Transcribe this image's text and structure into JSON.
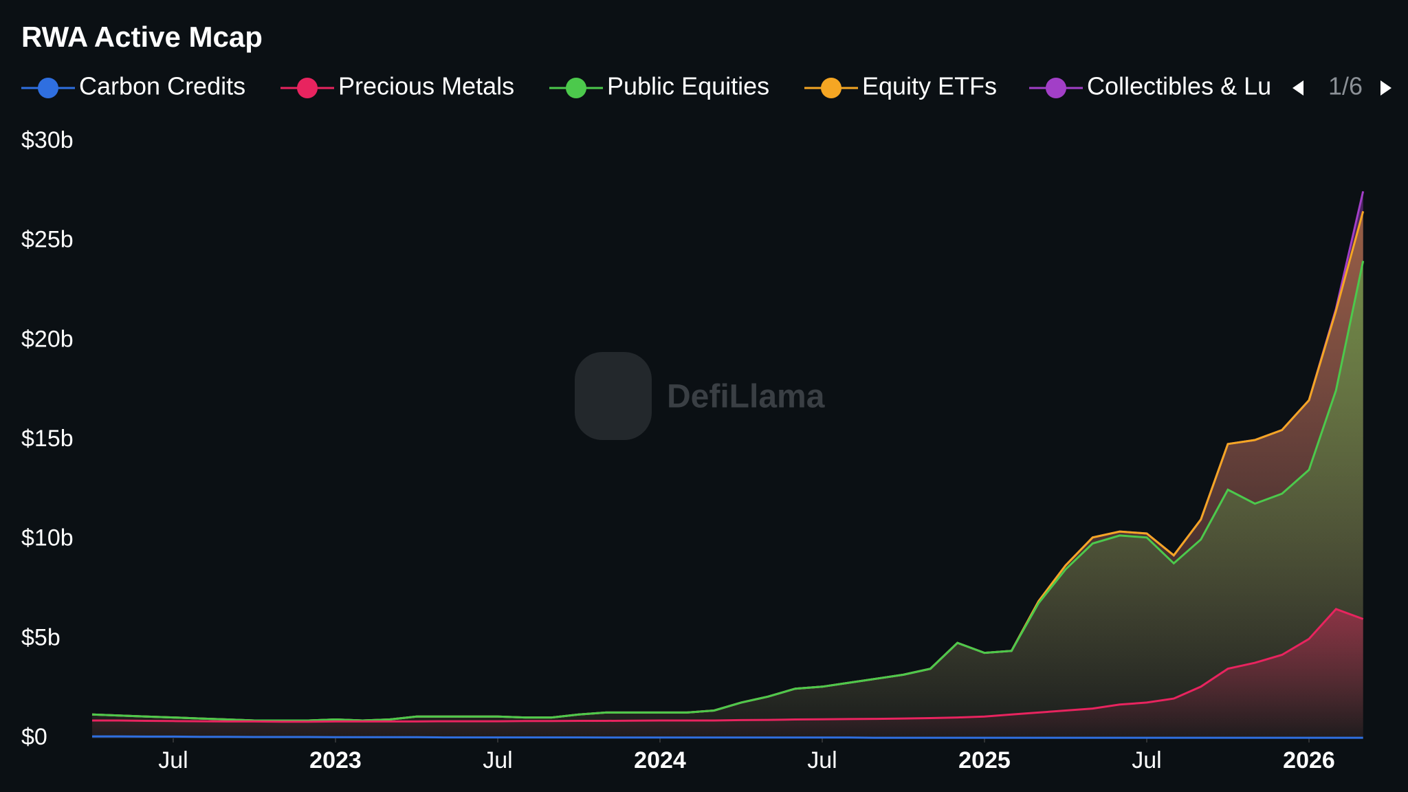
{
  "chart_data": {
    "type": "area",
    "title": "RWA Active Mcap",
    "watermark": "DefiLlama",
    "legend_page": "1/6",
    "x": [
      "2022-04",
      "2022-05",
      "2022-06",
      "2022-07",
      "2022-08",
      "2022-09",
      "2022-10",
      "2022-11",
      "2022-12",
      "2023-01",
      "2023-02",
      "2023-03",
      "2023-04",
      "2023-05",
      "2023-06",
      "2023-07",
      "2023-08",
      "2023-09",
      "2023-10",
      "2023-11",
      "2023-12",
      "2024-01",
      "2024-02",
      "2024-03",
      "2024-04",
      "2024-05",
      "2024-06",
      "2024-07",
      "2024-08",
      "2024-09",
      "2024-10",
      "2024-11",
      "2024-12",
      "2025-01",
      "2025-02",
      "2025-03",
      "2025-04",
      "2025-05",
      "2025-06",
      "2025-07",
      "2025-08",
      "2025-09",
      "2025-10",
      "2025-11",
      "2025-12",
      "2026-01",
      "2026-02",
      "2026-03"
    ],
    "xlim": [
      "2022-04",
      "2026-04"
    ],
    "xticks": [
      {
        "value": "2022-07",
        "label": "Jul"
      },
      {
        "value": "2023-01",
        "label": "2023"
      },
      {
        "value": "2023-07",
        "label": "Jul"
      },
      {
        "value": "2024-01",
        "label": "2024"
      },
      {
        "value": "2024-07",
        "label": "Jul"
      },
      {
        "value": "2025-01",
        "label": "2025"
      },
      {
        "value": "2025-07",
        "label": "Jul"
      },
      {
        "value": "2026-01",
        "label": "2026"
      }
    ],
    "ylim": [
      0,
      30
    ],
    "yticks": [
      {
        "value": 0,
        "label": "$0"
      },
      {
        "value": 5,
        "label": "$5b"
      },
      {
        "value": 10,
        "label": "$10b"
      },
      {
        "value": 15,
        "label": "$15b"
      },
      {
        "value": 20,
        "label": "$20b"
      },
      {
        "value": 25,
        "label": "$25b"
      },
      {
        "value": 30,
        "label": "$30b"
      }
    ],
    "series": [
      {
        "name": "Carbon Credits",
        "color": "#2f6fe0",
        "values": [
          0.1,
          0.1,
          0.09,
          0.09,
          0.08,
          0.08,
          0.07,
          0.07,
          0.07,
          0.06,
          0.06,
          0.06,
          0.06,
          0.05,
          0.05,
          0.05,
          0.05,
          0.05,
          0.05,
          0.04,
          0.04,
          0.04,
          0.04,
          0.04,
          0.04,
          0.04,
          0.04,
          0.04,
          0.04,
          0.03,
          0.03,
          0.03,
          0.03,
          0.03,
          0.03,
          0.03,
          0.03,
          0.03,
          0.03,
          0.03,
          0.03,
          0.03,
          0.03,
          0.03,
          0.03,
          0.03,
          0.03,
          0.03
        ]
      },
      {
        "name": "Precious Metals",
        "color": "#e8245f",
        "values": [
          0.9,
          0.9,
          0.88,
          0.87,
          0.86,
          0.85,
          0.85,
          0.84,
          0.84,
          0.85,
          0.85,
          0.85,
          0.85,
          0.86,
          0.86,
          0.86,
          0.87,
          0.87,
          0.88,
          0.88,
          0.89,
          0.9,
          0.9,
          0.9,
          0.92,
          0.93,
          0.95,
          0.96,
          0.97,
          0.98,
          1.0,
          1.02,
          1.05,
          1.1,
          1.2,
          1.3,
          1.4,
          1.5,
          1.7,
          1.8,
          2.0,
          2.6,
          3.5,
          3.8,
          4.2,
          5.0,
          6.5,
          6.0
        ]
      },
      {
        "name": "Public Equities",
        "color": "#4cc94c",
        "values": [
          1.2,
          1.15,
          1.1,
          1.05,
          1.0,
          0.95,
          0.9,
          0.9,
          0.9,
          0.95,
          0.9,
          0.95,
          1.1,
          1.1,
          1.1,
          1.1,
          1.05,
          1.05,
          1.2,
          1.3,
          1.3,
          1.3,
          1.3,
          1.4,
          1.8,
          2.1,
          2.5,
          2.6,
          2.8,
          3.0,
          3.2,
          3.5,
          4.8,
          4.3,
          4.4,
          6.8,
          8.5,
          9.8,
          10.2,
          10.1,
          8.8,
          10.0,
          12.5,
          11.8,
          12.3,
          13.5,
          17.5,
          24.0
        ]
      },
      {
        "name": "Equity ETFs",
        "color": "#f5a623",
        "values": [
          1.2,
          1.15,
          1.1,
          1.05,
          1.0,
          0.95,
          0.9,
          0.9,
          0.9,
          0.95,
          0.9,
          0.95,
          1.1,
          1.1,
          1.1,
          1.1,
          1.05,
          1.05,
          1.2,
          1.3,
          1.3,
          1.3,
          1.3,
          1.4,
          1.8,
          2.1,
          2.5,
          2.6,
          2.8,
          3.0,
          3.2,
          3.5,
          4.8,
          4.3,
          4.4,
          6.9,
          8.7,
          10.1,
          10.4,
          10.3,
          9.2,
          11.0,
          14.8,
          15.0,
          15.5,
          17.0,
          21.5,
          26.5
        ]
      },
      {
        "name": "Collectibles & Lu",
        "color": "#a23fc7",
        "values": [
          1.2,
          1.15,
          1.1,
          1.05,
          1.0,
          0.95,
          0.9,
          0.9,
          0.9,
          0.95,
          0.9,
          0.95,
          1.1,
          1.1,
          1.1,
          1.1,
          1.05,
          1.05,
          1.2,
          1.3,
          1.3,
          1.3,
          1.3,
          1.4,
          1.8,
          2.1,
          2.5,
          2.6,
          2.8,
          3.0,
          3.2,
          3.5,
          4.8,
          4.3,
          4.4,
          6.9,
          8.7,
          10.1,
          10.4,
          10.3,
          9.2,
          11.0,
          14.8,
          15.0,
          15.5,
          17.0,
          21.6,
          27.5
        ]
      }
    ]
  }
}
